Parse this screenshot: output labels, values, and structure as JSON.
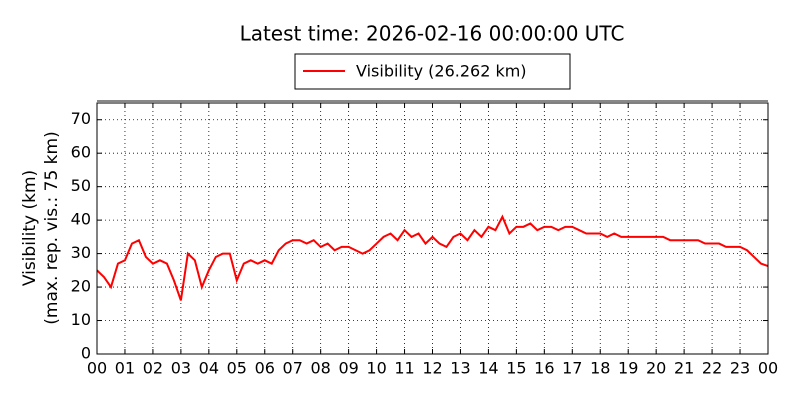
{
  "chart_data": {
    "type": "line",
    "title": "Latest time: 2026-02-16 00:00:00 UTC",
    "y_label": [
      "Visibility (km)",
      "(max. rep. vis.: 75 km)"
    ],
    "x": [
      0,
      0.25,
      0.5,
      0.75,
      1,
      1.25,
      1.5,
      1.75,
      2,
      2.25,
      2.5,
      2.75,
      3,
      3.25,
      3.5,
      3.75,
      4,
      4.25,
      4.5,
      4.75,
      5,
      5.25,
      5.5,
      5.75,
      6,
      6.25,
      6.5,
      6.75,
      7,
      7.25,
      7.5,
      7.75,
      8,
      8.25,
      8.5,
      8.75,
      9,
      9.25,
      9.5,
      9.75,
      10,
      10.25,
      10.5,
      10.75,
      11,
      11.25,
      11.5,
      11.75,
      12,
      12.25,
      12.5,
      12.75,
      13,
      13.25,
      13.5,
      13.75,
      14,
      14.25,
      14.5,
      14.75,
      15,
      15.25,
      15.5,
      15.75,
      16,
      16.25,
      16.5,
      16.75,
      17,
      17.25,
      17.5,
      17.75,
      18,
      18.25,
      18.5,
      18.75,
      19,
      19.25,
      19.5,
      19.75,
      20,
      20.25,
      20.5,
      20.75,
      21,
      21.25,
      21.5,
      21.75,
      22,
      22.25,
      22.5,
      22.75,
      23,
      23.25,
      23.5,
      23.75,
      24
    ],
    "series": [
      {
        "name": "Visibility (26.262 km)",
        "color": "#ff0000",
        "values": [
          25,
          23,
          20,
          27,
          28,
          33,
          34,
          29,
          27,
          28,
          27,
          22,
          16,
          30,
          28,
          20,
          25,
          29,
          30,
          30,
          22,
          27,
          28,
          27,
          28,
          27,
          31,
          33,
          34,
          34,
          33,
          34,
          32,
          33,
          31,
          32,
          32,
          31,
          30,
          31,
          33,
          35,
          36,
          34,
          37,
          35,
          36,
          33,
          35,
          33,
          32,
          35,
          36,
          34,
          37,
          35,
          38,
          37,
          41,
          36,
          38,
          38,
          39,
          37,
          38,
          38,
          37,
          38,
          38,
          37,
          36,
          36,
          36,
          35,
          36,
          35,
          35,
          35,
          35,
          35,
          35,
          35,
          34,
          34,
          34,
          34,
          34,
          33,
          33,
          33,
          32,
          32,
          32,
          31,
          29,
          27,
          26.262
        ]
      }
    ],
    "xlim": [
      0,
      24
    ],
    "ylim": [
      0,
      75
    ],
    "xticks": [
      {
        "value": 0,
        "label": "00"
      },
      {
        "value": 1,
        "label": "01"
      },
      {
        "value": 2,
        "label": "02"
      },
      {
        "value": 3,
        "label": "03"
      },
      {
        "value": 4,
        "label": "04"
      },
      {
        "value": 5,
        "label": "05"
      },
      {
        "value": 6,
        "label": "06"
      },
      {
        "value": 7,
        "label": "07"
      },
      {
        "value": 8,
        "label": "08"
      },
      {
        "value": 9,
        "label": "09"
      },
      {
        "value": 10,
        "label": "10"
      },
      {
        "value": 11,
        "label": "11"
      },
      {
        "value": 12,
        "label": "12"
      },
      {
        "value": 13,
        "label": "13"
      },
      {
        "value": 14,
        "label": "14"
      },
      {
        "value": 15,
        "label": "15"
      },
      {
        "value": 16,
        "label": "16"
      },
      {
        "value": 17,
        "label": "17"
      },
      {
        "value": 18,
        "label": "18"
      },
      {
        "value": 19,
        "label": "19"
      },
      {
        "value": 20,
        "label": "20"
      },
      {
        "value": 21,
        "label": "21"
      },
      {
        "value": 22,
        "label": "22"
      },
      {
        "value": 23,
        "label": "23"
      },
      {
        "value": 24,
        "label": "00"
      }
    ],
    "yticks": [
      0,
      10,
      20,
      30,
      40,
      50,
      60,
      70
    ],
    "grid": true
  }
}
